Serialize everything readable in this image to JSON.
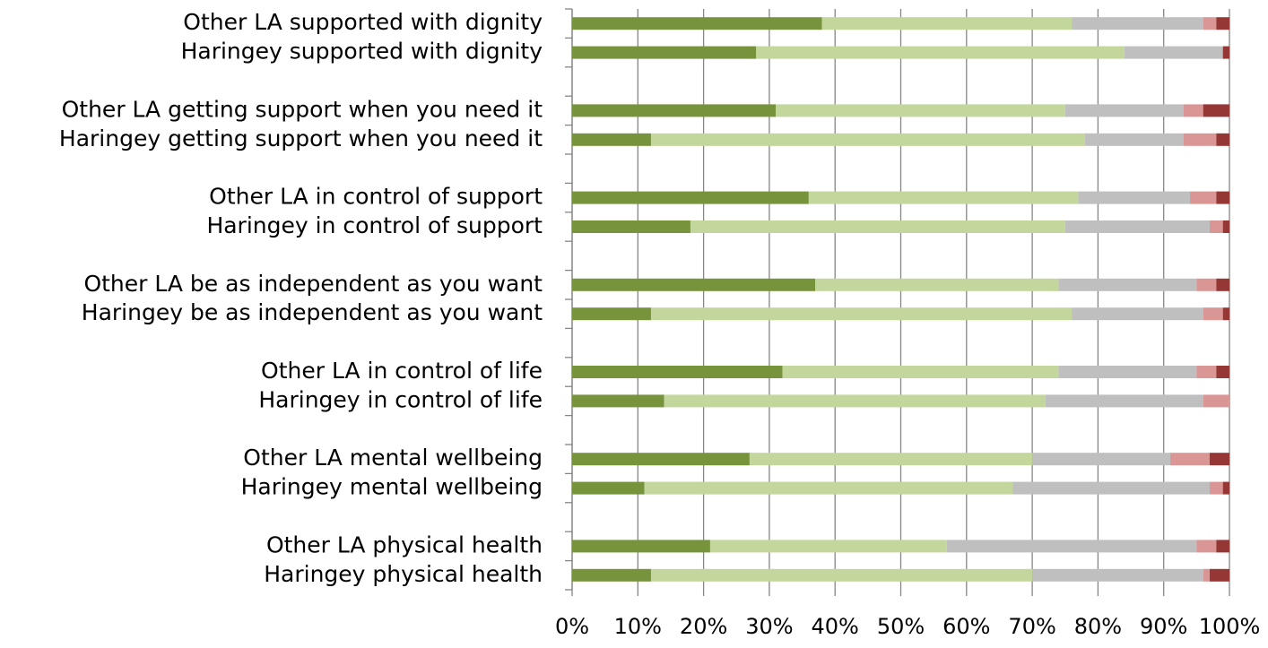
{
  "chart_data": {
    "type": "stacked-barh",
    "categories": [
      "Other LA supported with dignity",
      "Haringey supported with dignity",
      null,
      "Other LA getting support when you need it",
      "Haringey getting support when you need it",
      null,
      "Other LA in control of support",
      "Haringey in control of support",
      null,
      "Other LA be as independent as you want",
      "Haringey be as independent as you want",
      null,
      "Other LA in control of life",
      "Haringey in control of life",
      null,
      "Other LA mental wellbeing",
      "Haringey mental wellbeing",
      null,
      "Other LA physical health",
      "Haringey physical health"
    ],
    "series": [
      {
        "color": "#77933c",
        "values": [
          38,
          28,
          null,
          31,
          12,
          null,
          36,
          18,
          null,
          37,
          12,
          null,
          32,
          14,
          null,
          27,
          11,
          null,
          21,
          12
        ]
      },
      {
        "color": "#c3d69b",
        "values": [
          38,
          56,
          null,
          44,
          66,
          null,
          41,
          57,
          null,
          37,
          64,
          null,
          42,
          58,
          null,
          43,
          56,
          null,
          36,
          58
        ]
      },
      {
        "color": "#bfbfbf",
        "values": [
          20,
          15,
          null,
          18,
          15,
          null,
          17,
          22,
          null,
          21,
          20,
          null,
          21,
          24,
          null,
          21,
          30,
          null,
          38,
          26
        ]
      },
      {
        "color": "#d99694",
        "values": [
          2,
          0,
          null,
          3,
          5,
          null,
          4,
          2,
          null,
          3,
          3,
          null,
          3,
          4,
          null,
          6,
          2,
          null,
          3,
          1
        ]
      },
      {
        "color": "#953735",
        "values": [
          2,
          1,
          null,
          4,
          2,
          null,
          2,
          1,
          null,
          2,
          1,
          null,
          2,
          0,
          null,
          3,
          1,
          null,
          2,
          3
        ]
      }
    ],
    "xlim": [
      0,
      100
    ],
    "xticks": [
      {
        "value": 0,
        "label": "0%"
      },
      {
        "value": 10,
        "label": "10%"
      },
      {
        "value": 20,
        "label": "20%"
      },
      {
        "value": 30,
        "label": "30%"
      },
      {
        "value": 40,
        "label": "40%"
      },
      {
        "value": 50,
        "label": "50%"
      },
      {
        "value": 60,
        "label": "60%"
      },
      {
        "value": 70,
        "label": "70%"
      },
      {
        "value": 80,
        "label": "80%"
      },
      {
        "value": 90,
        "label": "90%"
      },
      {
        "value": 100,
        "label": "100%"
      }
    ],
    "grid": true
  }
}
